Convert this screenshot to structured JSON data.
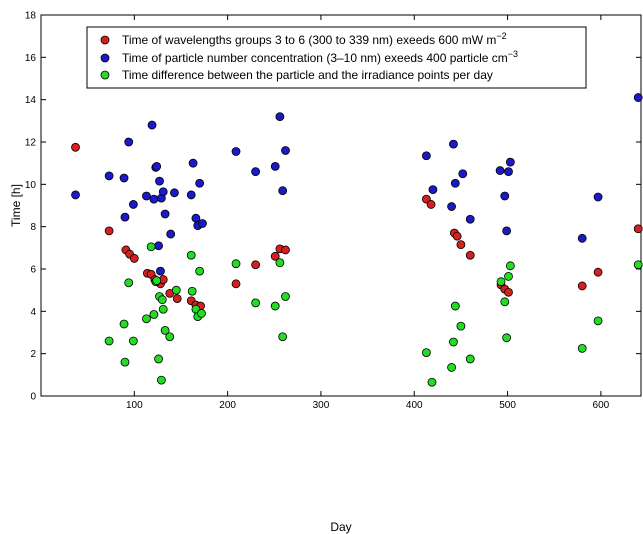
{
  "chart_data": {
    "type": "scatter",
    "xlabel": "Day",
    "ylabel": "Time [h]",
    "xlim": [
      0,
      643
    ],
    "ylim": [
      0,
      18
    ],
    "xticks": [
      100,
      200,
      300,
      400,
      500,
      600
    ],
    "yticks": [
      0,
      2,
      4,
      6,
      8,
      10,
      12,
      14,
      16,
      18
    ],
    "grid": false,
    "legend_position": "top",
    "series": [
      {
        "name_parts": [
          "Time of wavelengths groups 3 to 6 (300 to 339 nm) exeeds 600 mW m",
          "−2",
          ""
        ],
        "color": "#d42020",
        "points": [
          [
            37,
            11.75
          ],
          [
            73,
            7.8
          ],
          [
            91,
            6.9
          ],
          [
            95,
            6.7
          ],
          [
            100,
            6.5
          ],
          [
            114,
            5.8
          ],
          [
            118,
            5.75
          ],
          [
            122,
            5.5
          ],
          [
            125,
            5.4
          ],
          [
            128,
            5.3
          ],
          [
            131,
            5.5
          ],
          [
            138,
            4.85
          ],
          [
            146,
            4.6
          ],
          [
            161,
            4.5
          ],
          [
            166,
            4.3
          ],
          [
            171,
            4.25
          ],
          [
            209,
            5.3
          ],
          [
            230,
            6.2
          ],
          [
            251,
            6.6
          ],
          [
            256,
            6.95
          ],
          [
            262,
            6.9
          ],
          [
            413,
            9.3
          ],
          [
            418,
            9.05
          ],
          [
            443,
            7.7
          ],
          [
            446,
            7.55
          ],
          [
            450,
            7.15
          ],
          [
            460,
            6.65
          ],
          [
            493,
            5.25
          ],
          [
            497,
            5.05
          ],
          [
            501,
            4.9
          ],
          [
            580,
            5.2
          ],
          [
            597,
            5.85
          ],
          [
            640,
            7.9
          ]
        ]
      },
      {
        "name_parts": [
          "Time of particle number concentration (3–10 nm) exeeds 400 particle cm",
          "−3",
          ""
        ],
        "color": "#1a1ac8",
        "points": [
          [
            37,
            9.5
          ],
          [
            73,
            10.4
          ],
          [
            89,
            10.3
          ],
          [
            90,
            8.45
          ],
          [
            94,
            12.0
          ],
          [
            99,
            9.05
          ],
          [
            113,
            9.45
          ],
          [
            119,
            12.8
          ],
          [
            121,
            9.3
          ],
          [
            123,
            10.8
          ],
          [
            124,
            10.85
          ],
          [
            126,
            7.1
          ],
          [
            127,
            10.15
          ],
          [
            128,
            5.9
          ],
          [
            129,
            9.35
          ],
          [
            131,
            9.65
          ],
          [
            133,
            8.6
          ],
          [
            139,
            7.65
          ],
          [
            143,
            9.6
          ],
          [
            161,
            9.5
          ],
          [
            163,
            11.0
          ],
          [
            166,
            8.4
          ],
          [
            168,
            8.05
          ],
          [
            170,
            10.05
          ],
          [
            173,
            8.15
          ],
          [
            209,
            11.55
          ],
          [
            230,
            10.6
          ],
          [
            251,
            10.85
          ],
          [
            256,
            13.2
          ],
          [
            259,
            9.7
          ],
          [
            262,
            11.6
          ],
          [
            413,
            11.35
          ],
          [
            420,
            9.75
          ],
          [
            440,
            8.95
          ],
          [
            442,
            11.9
          ],
          [
            444,
            10.05
          ],
          [
            452,
            10.5
          ],
          [
            460,
            8.35
          ],
          [
            492,
            10.65
          ],
          [
            497,
            9.45
          ],
          [
            499,
            7.8
          ],
          [
            501,
            10.6
          ],
          [
            503,
            11.05
          ],
          [
            580,
            7.45
          ],
          [
            597,
            9.4
          ],
          [
            640,
            14.1
          ]
        ]
      },
      {
        "name_parts": [
          "Time difference between the particle and the irradiance points per day"
        ],
        "color": "#22dd22",
        "points": [
          [
            73,
            2.6
          ],
          [
            89,
            3.4
          ],
          [
            90,
            1.6
          ],
          [
            94,
            5.35
          ],
          [
            99,
            2.6
          ],
          [
            113,
            3.65
          ],
          [
            118,
            7.05
          ],
          [
            121,
            3.85
          ],
          [
            123,
            5.4
          ],
          [
            124,
            5.45
          ],
          [
            126,
            1.75
          ],
          [
            127,
            4.7
          ],
          [
            129,
            0.75
          ],
          [
            130,
            4.55
          ],
          [
            131,
            4.1
          ],
          [
            133,
            3.1
          ],
          [
            138,
            2.8
          ],
          [
            145,
            5.0
          ],
          [
            161,
            6.65
          ],
          [
            162,
            4.95
          ],
          [
            166,
            4.1
          ],
          [
            168,
            3.75
          ],
          [
            170,
            5.9
          ],
          [
            172,
            3.9
          ],
          [
            209,
            6.25
          ],
          [
            230,
            4.4
          ],
          [
            251,
            4.25
          ],
          [
            256,
            6.3
          ],
          [
            259,
            2.8
          ],
          [
            262,
            4.7
          ],
          [
            413,
            2.05
          ],
          [
            419,
            0.65
          ],
          [
            440,
            1.35
          ],
          [
            442,
            2.55
          ],
          [
            444,
            4.25
          ],
          [
            450,
            3.3
          ],
          [
            460,
            1.75
          ],
          [
            493,
            5.4
          ],
          [
            497,
            4.45
          ],
          [
            499,
            2.75
          ],
          [
            501,
            5.65
          ],
          [
            503,
            6.15
          ],
          [
            580,
            2.25
          ],
          [
            597,
            3.55
          ],
          [
            640,
            6.2
          ]
        ]
      }
    ]
  }
}
